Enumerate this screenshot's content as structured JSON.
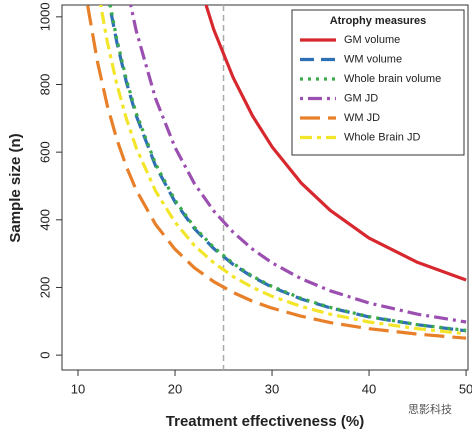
{
  "chart_data": {
    "type": "line",
    "x_label": "Treatment effectiveness (%)",
    "y_label": "Sample size (n)",
    "legend_title": "Atrophy measures",
    "legend": "top-right",
    "grid": false,
    "vline": 25,
    "watermark": "思影科技",
    "x": [
      10,
      11,
      12,
      13,
      14,
      15,
      16,
      18,
      20,
      22,
      24,
      26,
      28,
      30,
      33,
      36,
      40,
      45,
      50
    ],
    "xlim": [
      8.35,
      50.2
    ],
    "xticks": [
      10,
      20,
      30,
      40,
      50
    ],
    "ylim": [
      -44,
      1035
    ],
    "yticks": [
      0,
      200,
      400,
      600,
      800,
      1000
    ],
    "series": [
      {
        "name": "GM volume",
        "color": "#d7282f",
        "dash": "solid",
        "values": [
          null,
          null,
          null,
          null,
          null,
          null,
          null,
          null,
          null,
          1145,
          962,
          820,
          707,
          616,
          509,
          428,
          346,
          274,
          222
        ]
      },
      {
        "name": "WM volume",
        "color": "#2f6fb5",
        "dash": "dashed",
        "values": [
          null,
          null,
          null,
          1072,
          925,
          806,
          708,
          559,
          453,
          374,
          315,
          268,
          231,
          201,
          166,
          140,
          113,
          90,
          72
        ]
      },
      {
        "name": "Whole brain volume",
        "color": "#3aaa4a",
        "dash": "dotted",
        "values": [
          null,
          null,
          null,
          1083,
          934,
          813,
          715,
          565,
          458,
          378,
          318,
          271,
          233,
          203,
          168,
          141,
          114,
          90,
          73
        ]
      },
      {
        "name": "GM JD",
        "color": "#9b4fb0",
        "dash": "dotdash",
        "values": [
          null,
          null,
          null,
          null,
          null,
          1092,
          959,
          758,
          614,
          507,
          426,
          363,
          313,
          273,
          226,
          190,
          154,
          121,
          98
        ]
      },
      {
        "name": "WM JD",
        "color": "#e8802a",
        "dash": "longdash",
        "values": [
          null,
          1033,
          868,
          740,
          638,
          556,
          488,
          386,
          313,
          258,
          217,
          185,
          159,
          139,
          115,
          96,
          78,
          62,
          50
        ]
      },
      {
        "name": "Whole Brain JD",
        "color": "#f3e52a",
        "dash": "twodash",
        "values": [
          null,
          null,
          1090,
          929,
          801,
          698,
          613,
          485,
          393,
          324,
          273,
          232,
          200,
          174,
          144,
          121,
          98,
          78,
          63
        ]
      }
    ]
  }
}
